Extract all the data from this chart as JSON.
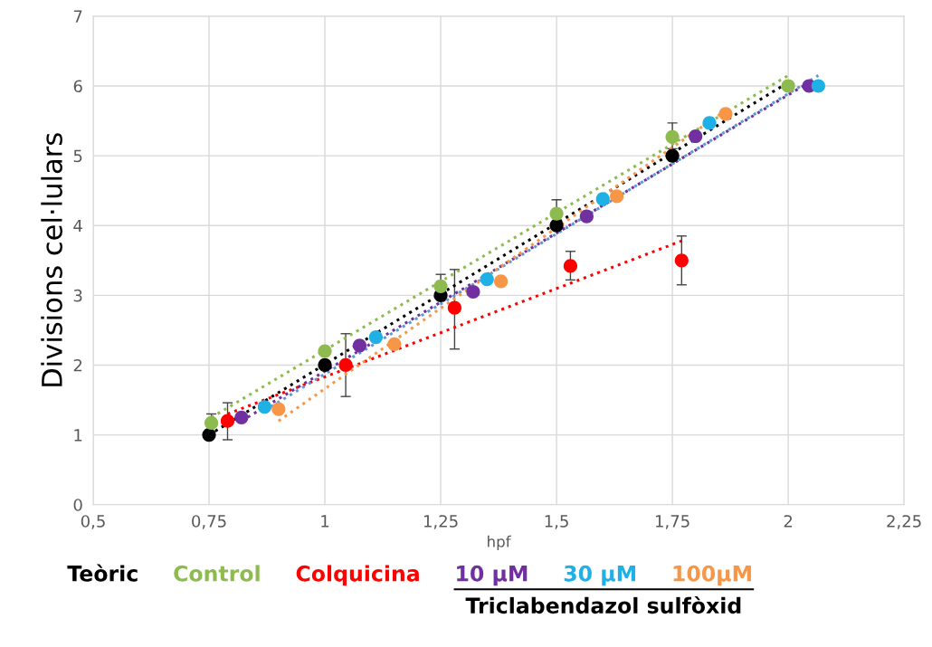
{
  "chart_data": {
    "type": "scatter",
    "xlabel": "hpf",
    "ylabel": "Divisions cel·lulars",
    "xlim": [
      0.5,
      2.25
    ],
    "ylim": [
      0,
      7
    ],
    "xticks": [
      {
        "value": 0.5,
        "label": "0,5"
      },
      {
        "value": 0.75,
        "label": "0,75"
      },
      {
        "value": 1,
        "label": "1"
      },
      {
        "value": 1.25,
        "label": "1,25"
      },
      {
        "value": 1.5,
        "label": "1,5"
      },
      {
        "value": 1.75,
        "label": "1,75"
      },
      {
        "value": 2,
        "label": "2"
      },
      {
        "value": 2.25,
        "label": "2,25"
      }
    ],
    "yticks": [
      0,
      1,
      2,
      3,
      4,
      5,
      6,
      7
    ],
    "grid": true,
    "legend": "bottom",
    "marker": "circle",
    "annotations": [
      "Triclabendazol sulfòxid"
    ],
    "series": [
      {
        "name": "Teòric",
        "color": "#000000",
        "x": [
          0.75,
          1.0,
          1.25,
          1.5,
          1.75
        ],
        "values": [
          1,
          2,
          3,
          4,
          5
        ]
      },
      {
        "name": "Control",
        "color": "#8dbb4f",
        "x": [
          0.755,
          1.0,
          1.25,
          1.5,
          1.75,
          2.0
        ],
        "values": [
          1.17,
          2.2,
          3.13,
          4.17,
          5.27,
          6.0
        ],
        "errors": [
          [
            1.05,
            1.3
          ],
          null,
          [
            3.0,
            3.3
          ],
          [
            4.17,
            4.37
          ],
          [
            5.1,
            5.47
          ],
          null
        ]
      },
      {
        "name": "Colquicina",
        "color": "#ff0000",
        "x": [
          0.79,
          1.045,
          1.28,
          1.53,
          1.77
        ],
        "values": [
          1.2,
          2.0,
          2.82,
          3.42,
          3.5
        ],
        "errors": [
          [
            0.93,
            1.46
          ],
          [
            1.55,
            2.45
          ],
          [
            2.23,
            3.37
          ],
          [
            3.22,
            3.63
          ],
          [
            3.15,
            3.85
          ]
        ]
      },
      {
        "name": "10 µM",
        "color": "#7030a0",
        "x": [
          0.82,
          1.075,
          1.32,
          1.565,
          1.8,
          2.045
        ],
        "values": [
          1.25,
          2.28,
          3.05,
          4.13,
          5.28,
          6.0
        ]
      },
      {
        "name": "30 µM",
        "color": "#1fb0e6",
        "x": [
          0.87,
          1.11,
          1.35,
          1.6,
          1.83,
          2.065
        ],
        "values": [
          1.4,
          2.4,
          3.23,
          4.38,
          5.47,
          6.0
        ]
      },
      {
        "name": "100µM",
        "color": "#f79646",
        "x": [
          0.9,
          1.15,
          1.38,
          1.63,
          1.865
        ],
        "values": [
          1.37,
          2.3,
          3.2,
          4.42,
          5.6
        ]
      },
      {
        "type": "line",
        "marker": "none",
        "line_style": "dotted",
        "color": "#000000",
        "x": [
          0.75,
          2.0
        ],
        "values": [
          1.0,
          6.05
        ]
      },
      {
        "type": "line",
        "marker": "none",
        "line_style": "dotted",
        "color": "#8dbb4f",
        "x": [
          0.755,
          2.0
        ],
        "values": [
          1.25,
          6.15
        ]
      },
      {
        "type": "line",
        "marker": "none",
        "line_style": "dotted",
        "color": "#ff0000",
        "x": [
          0.79,
          1.77
        ],
        "values": [
          1.3,
          3.78
        ]
      },
      {
        "type": "line",
        "marker": "none",
        "line_style": "dotted",
        "color": "#7030a0",
        "x": [
          0.82,
          2.045
        ],
        "values": [
          1.2,
          6.05
        ]
      },
      {
        "type": "line",
        "marker": "none",
        "line_style": "dotted",
        "color": "#5b9bd5",
        "x": [
          0.87,
          2.065
        ],
        "values": [
          1.35,
          6.15
        ]
      },
      {
        "type": "line",
        "marker": "none",
        "line_style": "dotted",
        "color": "#f79646",
        "x": [
          0.9,
          1.865
        ],
        "values": [
          1.2,
          5.65
        ]
      }
    ]
  }
}
